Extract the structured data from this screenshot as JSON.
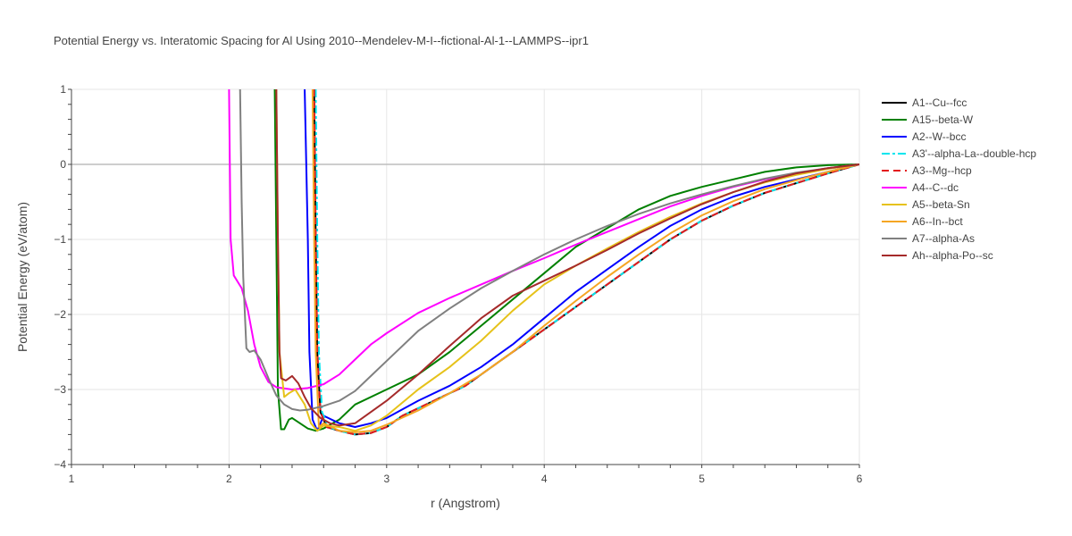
{
  "chart_data": {
    "type": "line",
    "title": "Potential Energy vs. Interatomic Spacing for Al Using 2010--Mendelev-M-I--fictional-Al-1--LAMMPS--ipr1",
    "xlabel": "r (Angstrom)",
    "ylabel": "Potential Energy (eV/atom)",
    "xlim": [
      1,
      6
    ],
    "ylim": [
      -4,
      1
    ],
    "xticks": [
      1,
      2,
      3,
      4,
      5,
      6
    ],
    "yticks": [
      1,
      0,
      -1,
      -2,
      -3,
      -4
    ],
    "tick_labels_x": [
      "1",
      "2",
      "3",
      "4",
      "5",
      "6"
    ],
    "tick_labels_y": [
      "1",
      "0",
      "−1",
      "−2",
      "−3",
      "−4"
    ],
    "grid": true,
    "legend_position": "top-right",
    "series": [
      {
        "name": "A1--Cu--fcc",
        "color": "#000000",
        "dash": "solid",
        "points": [
          [
            2.54,
            1.0
          ],
          [
            2.55,
            -1.0
          ],
          [
            2.56,
            -2.5
          ],
          [
            2.58,
            -3.3
          ],
          [
            2.62,
            -3.5
          ],
          [
            2.7,
            -3.55
          ],
          [
            2.8,
            -3.6
          ],
          [
            2.9,
            -3.58
          ],
          [
            3.0,
            -3.5
          ],
          [
            3.1,
            -3.35
          ],
          [
            3.2,
            -3.25
          ],
          [
            3.3,
            -3.15
          ],
          [
            3.4,
            -3.05
          ],
          [
            3.5,
            -2.95
          ],
          [
            3.6,
            -2.8
          ],
          [
            3.7,
            -2.65
          ],
          [
            3.8,
            -2.5
          ],
          [
            3.9,
            -2.35
          ],
          [
            4.0,
            -2.2
          ],
          [
            4.2,
            -1.9
          ],
          [
            4.4,
            -1.6
          ],
          [
            4.6,
            -1.3
          ],
          [
            4.8,
            -1.0
          ],
          [
            5.0,
            -0.75
          ],
          [
            5.2,
            -0.55
          ],
          [
            5.4,
            -0.38
          ],
          [
            5.6,
            -0.25
          ],
          [
            5.8,
            -0.12
          ],
          [
            6.0,
            0.0
          ]
        ]
      },
      {
        "name": "A15--beta-W",
        "color": "#008000",
        "dash": "solid",
        "points": [
          [
            2.29,
            1.0
          ],
          [
            2.3,
            -1.0
          ],
          [
            2.31,
            -3.0
          ],
          [
            2.33,
            -3.53
          ],
          [
            2.35,
            -3.53
          ],
          [
            2.38,
            -3.4
          ],
          [
            2.4,
            -3.38
          ],
          [
            2.45,
            -3.45
          ],
          [
            2.5,
            -3.52
          ],
          [
            2.55,
            -3.55
          ],
          [
            2.6,
            -3.52
          ],
          [
            2.7,
            -3.4
          ],
          [
            2.8,
            -3.2
          ],
          [
            3.0,
            -3.0
          ],
          [
            3.2,
            -2.8
          ],
          [
            3.4,
            -2.5
          ],
          [
            3.6,
            -2.15
          ],
          [
            3.8,
            -1.8
          ],
          [
            4.0,
            -1.45
          ],
          [
            4.2,
            -1.1
          ],
          [
            4.4,
            -0.85
          ],
          [
            4.6,
            -0.6
          ],
          [
            4.8,
            -0.42
          ],
          [
            5.0,
            -0.3
          ],
          [
            5.2,
            -0.2
          ],
          [
            5.4,
            -0.1
          ],
          [
            5.6,
            -0.04
          ],
          [
            5.8,
            -0.01
          ],
          [
            6.0,
            0.0
          ]
        ]
      },
      {
        "name": "A2--W--bcc",
        "color": "#0000ff",
        "dash": "solid",
        "points": [
          [
            2.48,
            1.0
          ],
          [
            2.5,
            -1.0
          ],
          [
            2.51,
            -2.5
          ],
          [
            2.53,
            -3.4
          ],
          [
            2.56,
            -3.55
          ],
          [
            2.6,
            -3.35
          ],
          [
            2.65,
            -3.4
          ],
          [
            2.7,
            -3.45
          ],
          [
            2.8,
            -3.5
          ],
          [
            2.9,
            -3.45
          ],
          [
            3.0,
            -3.38
          ],
          [
            3.2,
            -3.15
          ],
          [
            3.4,
            -2.95
          ],
          [
            3.6,
            -2.7
          ],
          [
            3.8,
            -2.4
          ],
          [
            4.0,
            -2.05
          ],
          [
            4.2,
            -1.7
          ],
          [
            4.4,
            -1.4
          ],
          [
            4.6,
            -1.1
          ],
          [
            4.8,
            -0.82
          ],
          [
            5.0,
            -0.6
          ],
          [
            5.2,
            -0.43
          ],
          [
            5.4,
            -0.3
          ],
          [
            5.6,
            -0.2
          ],
          [
            5.8,
            -0.1
          ],
          [
            6.0,
            0.0
          ]
        ]
      },
      {
        "name": "A3'--alpha-La--double-hcp",
        "color": "#00e5ee",
        "dash": "dashdot",
        "points": [
          [
            2.55,
            1.0
          ],
          [
            2.56,
            -1.0
          ],
          [
            2.57,
            -2.5
          ],
          [
            2.59,
            -3.3
          ],
          [
            2.63,
            -3.5
          ],
          [
            2.7,
            -3.55
          ],
          [
            2.8,
            -3.6
          ],
          [
            2.9,
            -3.58
          ],
          [
            3.0,
            -3.5
          ],
          [
            3.1,
            -3.35
          ],
          [
            3.2,
            -3.25
          ],
          [
            3.3,
            -3.15
          ],
          [
            3.4,
            -3.05
          ],
          [
            3.5,
            -2.95
          ],
          [
            3.6,
            -2.8
          ],
          [
            3.7,
            -2.65
          ],
          [
            3.8,
            -2.5
          ],
          [
            3.9,
            -2.35
          ],
          [
            4.0,
            -2.2
          ],
          [
            4.2,
            -1.9
          ],
          [
            4.4,
            -1.6
          ],
          [
            4.6,
            -1.3
          ],
          [
            4.8,
            -1.0
          ],
          [
            5.0,
            -0.75
          ],
          [
            5.2,
            -0.55
          ],
          [
            5.4,
            -0.38
          ],
          [
            5.6,
            -0.25
          ],
          [
            5.8,
            -0.12
          ],
          [
            6.0,
            0.0
          ]
        ]
      },
      {
        "name": "A3--Mg--hcp",
        "color": "#e31a1c",
        "dash": "dash",
        "points": [
          [
            2.54,
            1.0
          ],
          [
            2.55,
            -1.0
          ],
          [
            2.56,
            -2.5
          ],
          [
            2.58,
            -3.3
          ],
          [
            2.62,
            -3.5
          ],
          [
            2.7,
            -3.55
          ],
          [
            2.8,
            -3.6
          ],
          [
            2.9,
            -3.58
          ],
          [
            3.0,
            -3.5
          ],
          [
            3.1,
            -3.35
          ],
          [
            3.2,
            -3.25
          ],
          [
            3.3,
            -3.15
          ],
          [
            3.4,
            -3.05
          ],
          [
            3.5,
            -2.95
          ],
          [
            3.6,
            -2.8
          ],
          [
            3.7,
            -2.65
          ],
          [
            3.8,
            -2.5
          ],
          [
            3.9,
            -2.35
          ],
          [
            4.0,
            -2.2
          ],
          [
            4.2,
            -1.9
          ],
          [
            4.4,
            -1.6
          ],
          [
            4.6,
            -1.3
          ],
          [
            4.8,
            -1.0
          ],
          [
            5.0,
            -0.75
          ],
          [
            5.2,
            -0.55
          ],
          [
            5.4,
            -0.38
          ],
          [
            5.6,
            -0.25
          ],
          [
            5.8,
            -0.12
          ],
          [
            6.0,
            0.0
          ]
        ]
      },
      {
        "name": "A4--C--dc",
        "color": "#ff00ff",
        "dash": "solid",
        "points": [
          [
            2.0,
            1.0
          ],
          [
            2.01,
            -1.0
          ],
          [
            2.03,
            -1.48
          ],
          [
            2.08,
            -1.65
          ],
          [
            2.12,
            -1.95
          ],
          [
            2.16,
            -2.4
          ],
          [
            2.2,
            -2.7
          ],
          [
            2.25,
            -2.9
          ],
          [
            2.3,
            -2.97
          ],
          [
            2.4,
            -3.0
          ],
          [
            2.5,
            -2.98
          ],
          [
            2.6,
            -2.93
          ],
          [
            2.7,
            -2.8
          ],
          [
            2.8,
            -2.6
          ],
          [
            2.9,
            -2.4
          ],
          [
            3.0,
            -2.25
          ],
          [
            3.2,
            -1.98
          ],
          [
            3.4,
            -1.78
          ],
          [
            3.6,
            -1.6
          ],
          [
            3.8,
            -1.42
          ],
          [
            4.0,
            -1.25
          ],
          [
            4.2,
            -1.07
          ],
          [
            4.4,
            -0.9
          ],
          [
            4.6,
            -0.73
          ],
          [
            4.8,
            -0.56
          ],
          [
            5.0,
            -0.42
          ],
          [
            5.2,
            -0.3
          ],
          [
            5.4,
            -0.2
          ],
          [
            5.6,
            -0.12
          ],
          [
            5.8,
            -0.05
          ],
          [
            6.0,
            0.0
          ]
        ]
      },
      {
        "name": "A5--beta-Sn",
        "color": "#e6c21a",
        "dash": "solid",
        "points": [
          [
            2.3,
            1.0
          ],
          [
            2.31,
            -1.0
          ],
          [
            2.32,
            -2.5
          ],
          [
            2.35,
            -3.1
          ],
          [
            2.38,
            -3.05
          ],
          [
            2.42,
            -3.0
          ],
          [
            2.48,
            -3.2
          ],
          [
            2.52,
            -3.45
          ],
          [
            2.56,
            -3.55
          ],
          [
            2.6,
            -3.48
          ],
          [
            2.7,
            -3.5
          ],
          [
            2.8,
            -3.55
          ],
          [
            2.9,
            -3.48
          ],
          [
            3.0,
            -3.35
          ],
          [
            3.2,
            -3.0
          ],
          [
            3.4,
            -2.7
          ],
          [
            3.6,
            -2.35
          ],
          [
            3.8,
            -1.95
          ],
          [
            4.0,
            -1.6
          ],
          [
            4.2,
            -1.35
          ],
          [
            4.4,
            -1.12
          ],
          [
            4.6,
            -0.9
          ],
          [
            4.8,
            -0.7
          ],
          [
            5.0,
            -0.52
          ],
          [
            5.2,
            -0.37
          ],
          [
            5.4,
            -0.24
          ],
          [
            5.6,
            -0.14
          ],
          [
            5.8,
            -0.06
          ],
          [
            6.0,
            0.0
          ]
        ]
      },
      {
        "name": "A6--In--bct",
        "color": "#f5a623",
        "dash": "solid",
        "points": [
          [
            2.53,
            1.0
          ],
          [
            2.54,
            -1.0
          ],
          [
            2.55,
            -2.5
          ],
          [
            2.57,
            -3.5
          ],
          [
            2.6,
            -3.45
          ],
          [
            2.65,
            -3.5
          ],
          [
            2.7,
            -3.55
          ],
          [
            2.8,
            -3.57
          ],
          [
            2.9,
            -3.55
          ],
          [
            3.0,
            -3.47
          ],
          [
            3.2,
            -3.28
          ],
          [
            3.4,
            -3.05
          ],
          [
            3.6,
            -2.8
          ],
          [
            3.8,
            -2.5
          ],
          [
            4.0,
            -2.15
          ],
          [
            4.2,
            -1.82
          ],
          [
            4.4,
            -1.5
          ],
          [
            4.6,
            -1.2
          ],
          [
            4.8,
            -0.92
          ],
          [
            5.0,
            -0.68
          ],
          [
            5.2,
            -0.49
          ],
          [
            5.4,
            -0.33
          ],
          [
            5.6,
            -0.21
          ],
          [
            5.8,
            -0.1
          ],
          [
            6.0,
            0.0
          ]
        ]
      },
      {
        "name": "A7--alpha-As",
        "color": "#808080",
        "dash": "solid",
        "points": [
          [
            2.07,
            1.0
          ],
          [
            2.08,
            -0.5
          ],
          [
            2.09,
            -1.5
          ],
          [
            2.11,
            -2.45
          ],
          [
            2.13,
            -2.5
          ],
          [
            2.16,
            -2.48
          ],
          [
            2.2,
            -2.6
          ],
          [
            2.25,
            -2.85
          ],
          [
            2.3,
            -3.08
          ],
          [
            2.35,
            -3.2
          ],
          [
            2.4,
            -3.26
          ],
          [
            2.45,
            -3.28
          ],
          [
            2.5,
            -3.27
          ],
          [
            2.6,
            -3.22
          ],
          [
            2.7,
            -3.15
          ],
          [
            2.8,
            -3.02
          ],
          [
            2.9,
            -2.82
          ],
          [
            3.0,
            -2.62
          ],
          [
            3.2,
            -2.22
          ],
          [
            3.4,
            -1.92
          ],
          [
            3.6,
            -1.65
          ],
          [
            3.8,
            -1.42
          ],
          [
            4.0,
            -1.2
          ],
          [
            4.2,
            -1.0
          ],
          [
            4.4,
            -0.82
          ],
          [
            4.6,
            -0.66
          ],
          [
            4.8,
            -0.52
          ],
          [
            5.0,
            -0.4
          ],
          [
            5.2,
            -0.29
          ],
          [
            5.4,
            -0.19
          ],
          [
            5.6,
            -0.11
          ],
          [
            5.8,
            -0.05
          ],
          [
            6.0,
            0.0
          ]
        ]
      },
      {
        "name": "Ah--alpha-Po--sc",
        "color": "#a52a2a",
        "dash": "solid",
        "points": [
          [
            2.3,
            1.0
          ],
          [
            2.31,
            -1.0
          ],
          [
            2.32,
            -2.5
          ],
          [
            2.33,
            -2.85
          ],
          [
            2.36,
            -2.88
          ],
          [
            2.4,
            -2.82
          ],
          [
            2.44,
            -2.92
          ],
          [
            2.48,
            -3.1
          ],
          [
            2.52,
            -3.25
          ],
          [
            2.58,
            -3.38
          ],
          [
            2.64,
            -3.45
          ],
          [
            2.7,
            -3.48
          ],
          [
            2.8,
            -3.45
          ],
          [
            2.9,
            -3.3
          ],
          [
            3.0,
            -3.15
          ],
          [
            3.2,
            -2.8
          ],
          [
            3.4,
            -2.42
          ],
          [
            3.6,
            -2.05
          ],
          [
            3.8,
            -1.75
          ],
          [
            4.0,
            -1.55
          ],
          [
            4.2,
            -1.35
          ],
          [
            4.4,
            -1.14
          ],
          [
            4.6,
            -0.92
          ],
          [
            4.8,
            -0.72
          ],
          [
            5.0,
            -0.53
          ],
          [
            5.2,
            -0.37
          ],
          [
            5.4,
            -0.23
          ],
          [
            5.6,
            -0.12
          ],
          [
            5.8,
            -0.05
          ],
          [
            6.0,
            0.0
          ]
        ]
      }
    ]
  }
}
